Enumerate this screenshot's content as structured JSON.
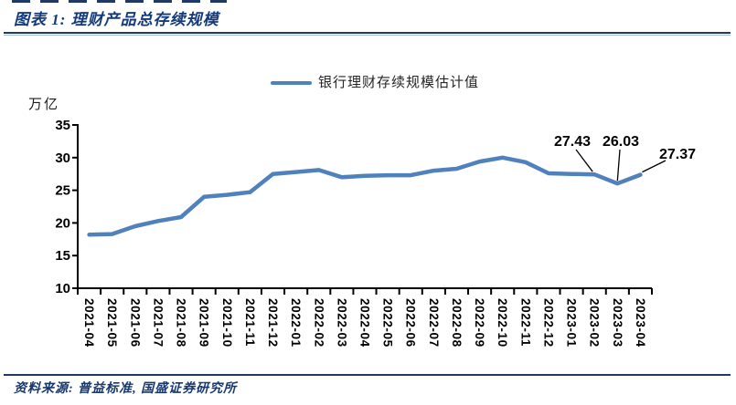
{
  "header": {
    "title": "图表 1: 理财产品总存续规模"
  },
  "footer": {
    "source": "资料来源: 普益标准, 国盛证券研究所"
  },
  "chart_data": {
    "type": "line",
    "title": "理财产品总存续规模",
    "ylabel": "万亿",
    "xlabel": "",
    "ylim": [
      10,
      35
    ],
    "ytick_step": 5,
    "grid": false,
    "legend_position": "top",
    "categories": [
      "2021-04",
      "2021-05",
      "2021-06",
      "2021-07",
      "2021-08",
      "2021-09",
      "2021-10",
      "2021-11",
      "2021-12",
      "2022-01",
      "2022-02",
      "2022-03",
      "2022-04",
      "2022-05",
      "2022-06",
      "2022-07",
      "2022-08",
      "2022-09",
      "2022-10",
      "2022-11",
      "2022-12",
      "2023-01",
      "2023-02",
      "2023-03",
      "2023-04"
    ],
    "series": [
      {
        "name": "银行理财存续规模估计值",
        "color": "#4f81bd",
        "values": [
          18.2,
          18.3,
          19.5,
          20.3,
          20.9,
          24.0,
          24.3,
          24.7,
          27.5,
          27.8,
          28.1,
          27.0,
          27.2,
          27.3,
          27.3,
          28.0,
          28.3,
          29.4,
          30.0,
          29.3,
          27.6,
          27.5,
          27.43,
          26.03,
          27.37
        ]
      }
    ],
    "annotations": [
      {
        "index": 22,
        "label": "27.43"
      },
      {
        "index": 23,
        "label": "26.03"
      },
      {
        "index": 24,
        "label": "27.37"
      }
    ]
  }
}
